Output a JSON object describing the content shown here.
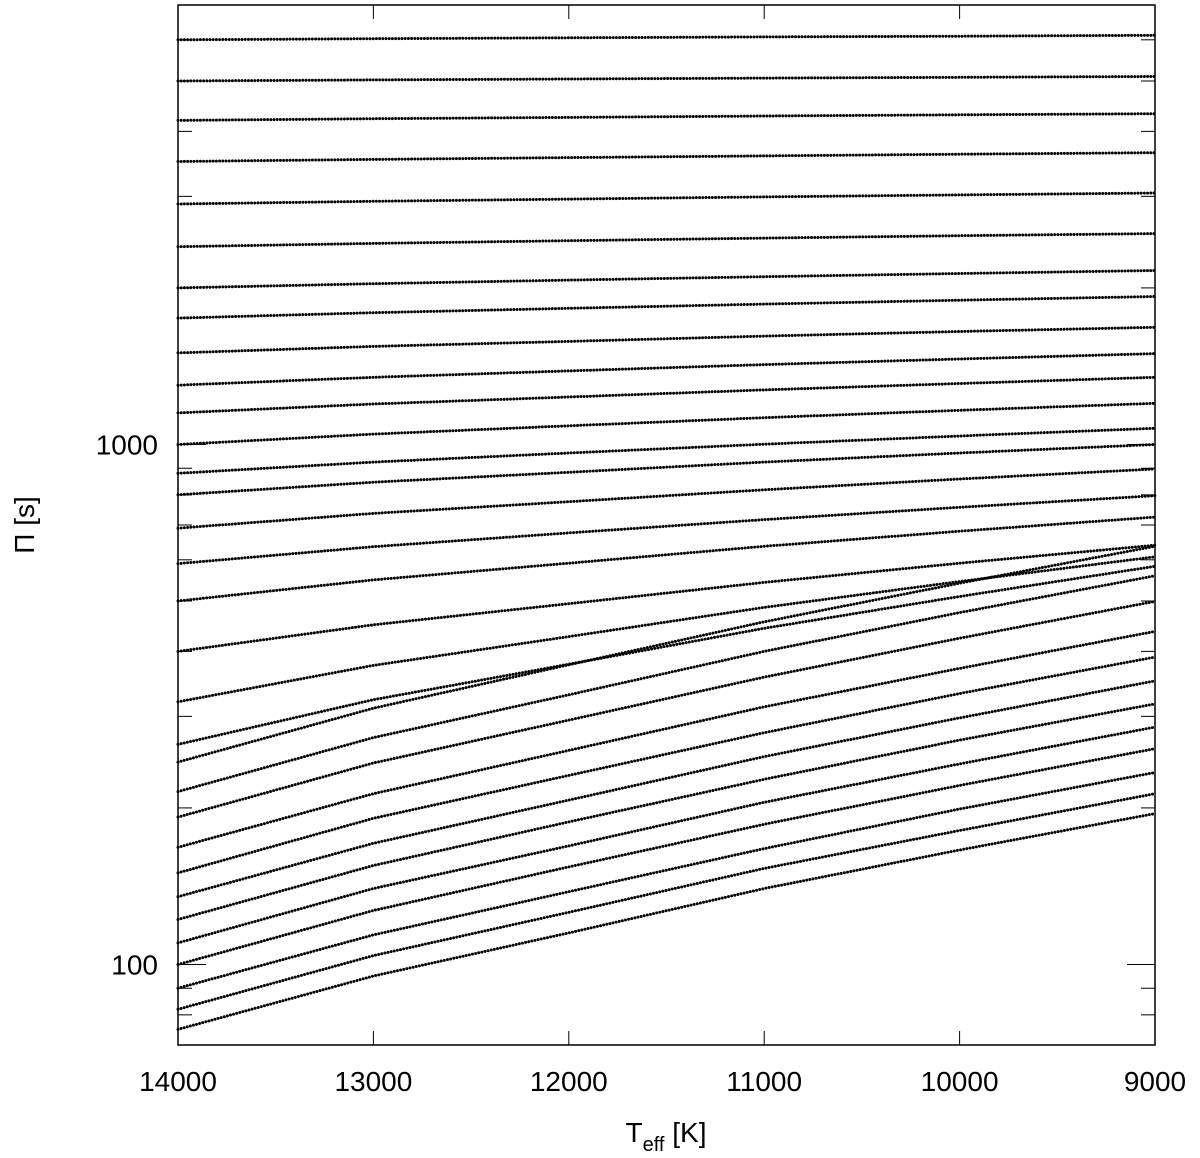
{
  "chart_data": {
    "type": "line",
    "xlabel": "T",
    "xlabel_subscript": "eff",
    "xlabel_suffix": " [K]",
    "ylabel": "Π [s]",
    "x": [
      14000,
      13000,
      12000,
      11000,
      10000,
      9000
    ],
    "xlim": [
      14000,
      9000
    ],
    "xticks": [
      14000,
      13000,
      12000,
      11000,
      10000,
      9000
    ],
    "ylim": [
      70,
      7000
    ],
    "yscale": "log",
    "yticks": [
      100,
      1000
    ],
    "yminorticks": [
      80,
      90,
      200,
      300,
      400,
      500,
      600,
      700,
      800,
      900,
      2000,
      3000,
      4000,
      5000,
      6000,
      7000
    ],
    "color": "#000000",
    "series": [
      {
        "values": [
          75,
          95,
          115,
          140,
          166,
          195
        ]
      },
      {
        "values": [
          82,
          104,
          126,
          153,
          181,
          213
        ]
      },
      {
        "values": [
          90,
          114,
          138,
          167,
          199,
          234
        ]
      },
      {
        "values": [
          100,
          127,
          154,
          186,
          221,
          260
        ]
      },
      {
        "values": [
          110,
          140,
          169,
          205,
          243,
          286
        ]
      },
      {
        "values": [
          122,
          155,
          188,
          227,
          270,
          317
        ]
      },
      {
        "values": [
          135,
          171,
          207,
          251,
          298,
          351
        ]
      },
      {
        "values": [
          150,
          191,
          231,
          279,
          332,
          390
        ]
      },
      {
        "values": [
          168,
          213,
          258,
          313,
          371,
          437
        ]
      },
      {
        "values": [
          192,
          244,
          295,
          357,
          424,
          499
        ]
      },
      {
        "values": [
          215,
          273,
          330,
          400,
          475,
          559
        ]
      },
      {
        "values": [
          245,
          311,
          377,
          456,
          541,
          637
        ]
      },
      {
        "values": [
          265,
          323,
          378,
          443,
          510,
          583
        ]
      },
      {
        "values": [
          320,
          376,
          427,
          486,
          545,
          608
        ]
      },
      {
        "values": [
          400,
          450,
          494,
          543,
          591,
          640
        ]
      },
      {
        "values": [
          500,
          549,
          591,
          637,
          681,
          725
        ]
      },
      {
        "values": [
          590,
          636,
          676,
          717,
          757,
          797
        ]
      },
      {
        "values": [
          690,
          737,
          776,
          818,
          858,
          897
        ]
      },
      {
        "values": [
          800,
          846,
          884,
          925,
          963,
          1000
        ]
      },
      {
        "values": [
          880,
          925,
          963,
          1001,
          1038,
          1074
        ]
      },
      {
        "values": [
          1000,
          1047,
          1086,
          1126,
          1163,
          1200
        ]
      },
      {
        "values": [
          1150,
          1196,
          1234,
          1273,
          1310,
          1346
        ]
      },
      {
        "values": [
          1300,
          1346,
          1385,
          1424,
          1460,
          1495
        ]
      },
      {
        "values": [
          1500,
          1544,
          1578,
          1616,
          1649,
          1680
        ]
      },
      {
        "values": [
          1750,
          1792,
          1827,
          1862,
          1894,
          1925
        ]
      },
      {
        "values": [
          2000,
          2038,
          2070,
          2102,
          2132,
          2160
        ]
      },
      {
        "values": [
          2400,
          2436,
          2465,
          2494,
          2520,
          2544
        ]
      },
      {
        "values": [
          2900,
          2935,
          2964,
          2993,
          3019,
          3045
        ]
      },
      {
        "values": [
          3500,
          3534,
          3562,
          3589,
          3615,
          3640
        ]
      },
      {
        "values": [
          4200,
          4231,
          4256,
          4281,
          4304,
          4326
        ]
      },
      {
        "values": [
          5000,
          5025,
          5045,
          5064,
          5082,
          5100
        ]
      },
      {
        "values": [
          6000,
          6030,
          6054,
          6077,
          6098,
          6120
        ]
      }
    ]
  }
}
